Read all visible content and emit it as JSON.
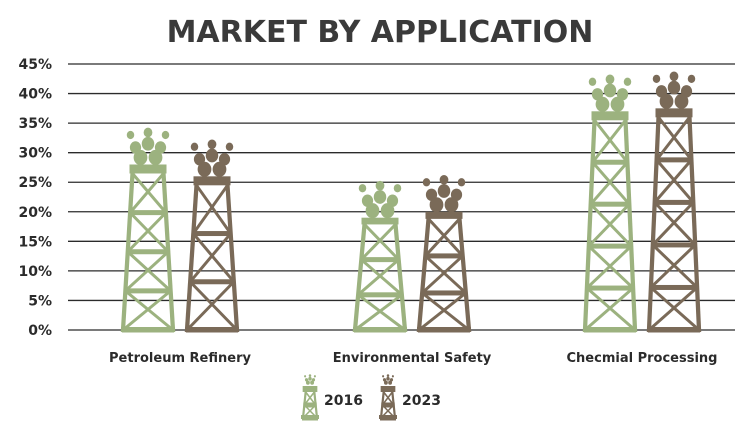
{
  "chart_data": {
    "type": "bar",
    "title": "MARKET BY APPLICATION",
    "categories": [
      "Petroleum Refinery",
      "Environmental Safety",
      "Checmial Processing"
    ],
    "series": [
      {
        "name": "2016",
        "values": [
          28,
          19,
          37
        ],
        "color": "#9cb27f"
      },
      {
        "name": "2023",
        "values": [
          26,
          20,
          37.5
        ],
        "color": "#7a6a58"
      }
    ],
    "ylim": [
      0,
      45
    ],
    "yticks": [
      "0%",
      "5%",
      "10%",
      "15%",
      "20%",
      "25%",
      "30%",
      "35%",
      "40%",
      "45%"
    ],
    "ytick_values": [
      0,
      5,
      10,
      15,
      20,
      25,
      30,
      35,
      40,
      45
    ],
    "grid": true,
    "legend_position": "bottom",
    "bar_style": "oil-rig-icon"
  }
}
